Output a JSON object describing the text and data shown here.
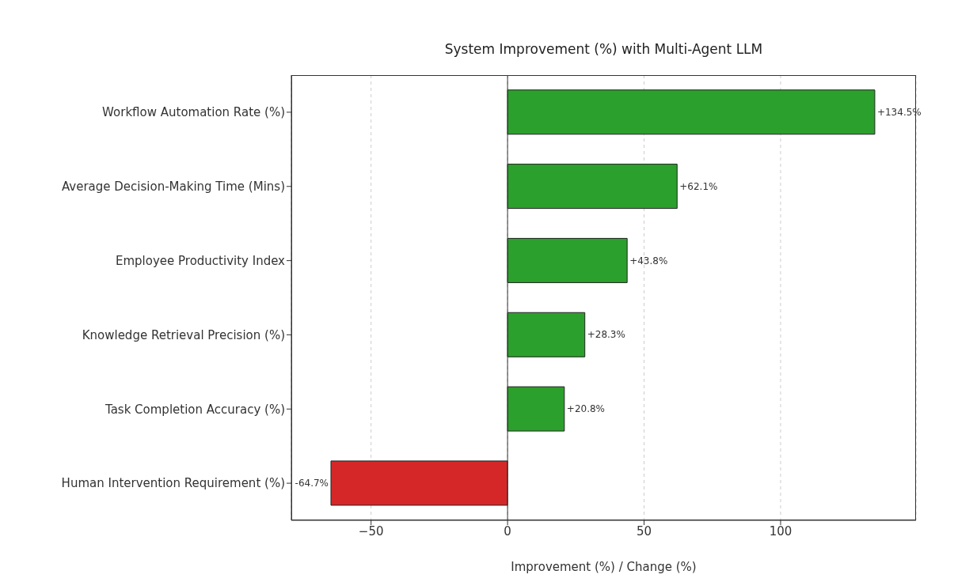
{
  "chart_data": {
    "type": "bar",
    "orientation": "horizontal",
    "title": "System Improvement (%) with Multi-Agent LLM",
    "xlabel": "Improvement (%) / Change (%)",
    "categories": [
      "Workflow Automation Rate (%)",
      "Average Decision-Making Time (Mins)",
      "Employee Productivity Index",
      "Knowledge Retrieval Precision (%)",
      "Task Completion Accuracy (%)",
      "Human Intervention Requirement (%)"
    ],
    "values": [
      134.5,
      62.1,
      43.8,
      28.3,
      20.8,
      -64.7
    ],
    "colors": [
      "#2ca02c",
      "#2ca02c",
      "#2ca02c",
      "#2ca02c",
      "#2ca02c",
      "#d62728"
    ],
    "value_labels": [
      "+134.5%",
      "+62.1%",
      "+43.8%",
      "+28.3%",
      "+20.8%",
      "-64.7%"
    ],
    "xlim": [
      -79.2,
      149.6
    ],
    "xticks": [
      -50,
      0,
      50,
      100
    ],
    "ref_lines": [
      {
        "axis": "x",
        "value": 0,
        "color": "#333333"
      }
    ],
    "grid": "x"
  }
}
